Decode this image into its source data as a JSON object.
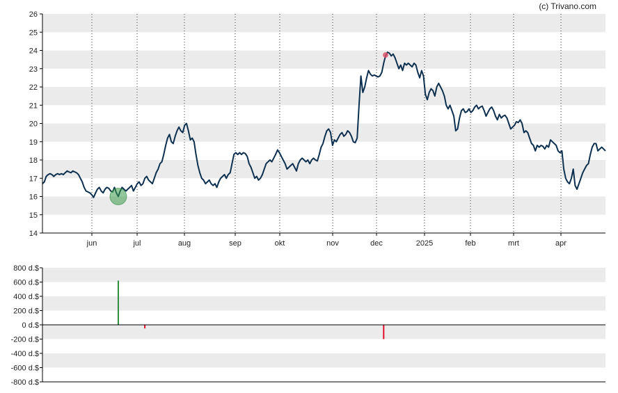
{
  "credit": "(c) Trivano.com",
  "colors": {
    "line": "#0d3050",
    "band": "#ebebeb",
    "buy": "#2e8b3d",
    "sell": "#e0102a",
    "buy_marker": "#3a9a4a",
    "sell_marker": "#e0506a"
  },
  "chart_data": [
    {
      "type": "line",
      "name": "price",
      "ylim": [
        14,
        26
      ],
      "y_ticks": [
        "14",
        "15",
        "16",
        "17",
        "18",
        "19",
        "20",
        "21",
        "22",
        "23",
        "24",
        "25",
        "26"
      ],
      "grid": "alternating horizontal bands, dotted vertical month lines",
      "x_ticks": [
        "jun",
        "jul",
        "aug",
        "sep",
        "okt",
        "nov",
        "dec",
        "2025",
        "feb",
        "mrt",
        "apr"
      ],
      "series": [
        {
          "values": [
            16.7,
            16.8,
            17.1,
            17.2,
            17.25,
            17.2,
            17.1,
            17.2,
            17.25,
            17.2,
            17.25,
            17.2,
            17.3,
            17.4,
            17.35,
            17.3,
            17.4,
            17.35,
            17.3,
            17.2,
            17.0,
            16.8,
            16.5,
            16.3,
            16.25,
            16.2,
            16.1,
            15.95,
            16.2,
            16.4,
            16.5,
            16.3,
            16.2,
            16.4,
            16.5,
            16.45,
            16.3,
            16.25,
            16.5,
            16.2,
            16.0,
            16.3,
            16.5,
            16.4,
            16.3,
            16.4,
            16.5,
            16.6,
            16.3,
            16.5,
            16.7,
            16.8,
            16.6,
            16.7,
            17.0,
            17.1,
            16.9,
            16.8,
            16.7,
            17.0,
            17.3,
            17.5,
            17.8,
            17.9,
            18.3,
            18.8,
            19.2,
            19.4,
            19.0,
            18.9,
            19.3,
            19.6,
            19.8,
            19.6,
            19.5,
            19.9,
            20.0,
            19.6,
            19.1,
            19.2,
            19.0,
            18.3,
            17.7,
            17.3,
            17.0,
            16.9,
            16.7,
            16.8,
            16.9,
            16.7,
            16.6,
            16.7,
            16.5,
            16.8,
            17.0,
            17.1,
            17.2,
            17.0,
            17.2,
            17.3,
            17.8,
            18.3,
            18.4,
            18.3,
            18.4,
            18.3,
            18.4,
            18.35,
            18.2,
            17.8,
            17.6,
            17.3,
            17.0,
            17.1,
            16.9,
            17.0,
            17.2,
            17.5,
            17.8,
            17.9,
            18.0,
            17.9,
            18.1,
            18.3,
            18.55,
            18.4,
            18.2,
            18.0,
            17.8,
            17.5,
            17.6,
            17.7,
            17.8,
            17.6,
            17.4,
            17.8,
            18.0,
            18.1,
            18.0,
            17.9,
            18.0,
            17.8,
            18.0,
            18.1,
            18.0,
            17.95,
            18.3,
            18.7,
            18.9,
            19.3,
            19.6,
            19.7,
            19.5,
            18.8,
            19.1,
            19.0,
            19.2,
            19.4,
            19.5,
            19.3,
            19.4,
            19.6,
            19.5,
            19.3,
            19.0,
            18.95,
            19.2,
            21.0,
            22.6,
            21.7,
            22.0,
            22.5,
            22.9,
            22.7,
            22.6,
            22.65,
            22.6,
            22.55,
            22.6,
            22.8,
            23.3,
            23.7,
            23.9,
            23.85,
            23.7,
            23.8,
            23.6,
            23.3,
            23.0,
            23.2,
            22.9,
            23.3,
            23.2,
            23.3,
            23.2,
            23.1,
            23.3,
            23.2,
            22.8,
            22.5,
            22.9,
            22.6,
            21.6,
            21.3,
            21.7,
            21.9,
            21.8,
            21.5,
            22.0,
            22.2,
            22.0,
            21.8,
            21.5,
            21.0,
            20.8,
            21.0,
            20.7,
            20.4,
            19.6,
            19.7,
            20.3,
            20.7,
            20.8,
            20.6,
            20.65,
            20.8,
            20.6,
            20.7,
            20.9,
            21.0,
            20.8,
            20.9,
            20.95,
            20.7,
            20.4,
            20.6,
            20.8,
            20.9,
            20.7,
            20.4,
            20.2,
            20.5,
            20.3,
            20.4,
            20.45,
            20.3,
            20.0,
            19.7,
            19.8,
            19.9,
            20.1,
            20.05,
            20.2,
            20.0,
            19.5,
            19.6,
            19.5,
            19.2,
            18.9,
            18.8,
            18.5,
            18.8,
            18.7,
            18.8,
            18.75,
            18.6,
            18.8,
            18.7,
            19.1,
            19.0,
            18.9,
            18.8,
            18.5,
            18.4,
            18.5,
            17.5,
            17.0,
            16.8,
            16.7,
            17.0,
            17.5,
            16.6,
            16.4,
            16.7,
            17.0,
            17.3,
            17.5,
            17.7,
            17.8,
            18.3,
            18.7,
            18.9,
            18.9,
            18.5,
            18.6,
            18.7,
            18.6,
            18.5
          ]
        }
      ],
      "markers": [
        {
          "type": "buy",
          "index": 40,
          "value": 16.0
        },
        {
          "type": "sell",
          "index": 181,
          "value": 23.75
        }
      ]
    },
    {
      "type": "bar",
      "name": "transactions",
      "ylim": [
        -800,
        800
      ],
      "y_ticks": [
        "800 d.$",
        "600 d.$",
        "400 d.$",
        "200 d.$",
        "0 d.$",
        "-200 d.$",
        "-400 d.$",
        "-600 d.$",
        "-800 d.$"
      ],
      "bars": [
        {
          "index": 40,
          "value": 620,
          "type": "buy"
        },
        {
          "index": 54,
          "value": -50,
          "type": "sell"
        },
        {
          "index": 180,
          "value": -200,
          "type": "sell"
        }
      ]
    }
  ]
}
